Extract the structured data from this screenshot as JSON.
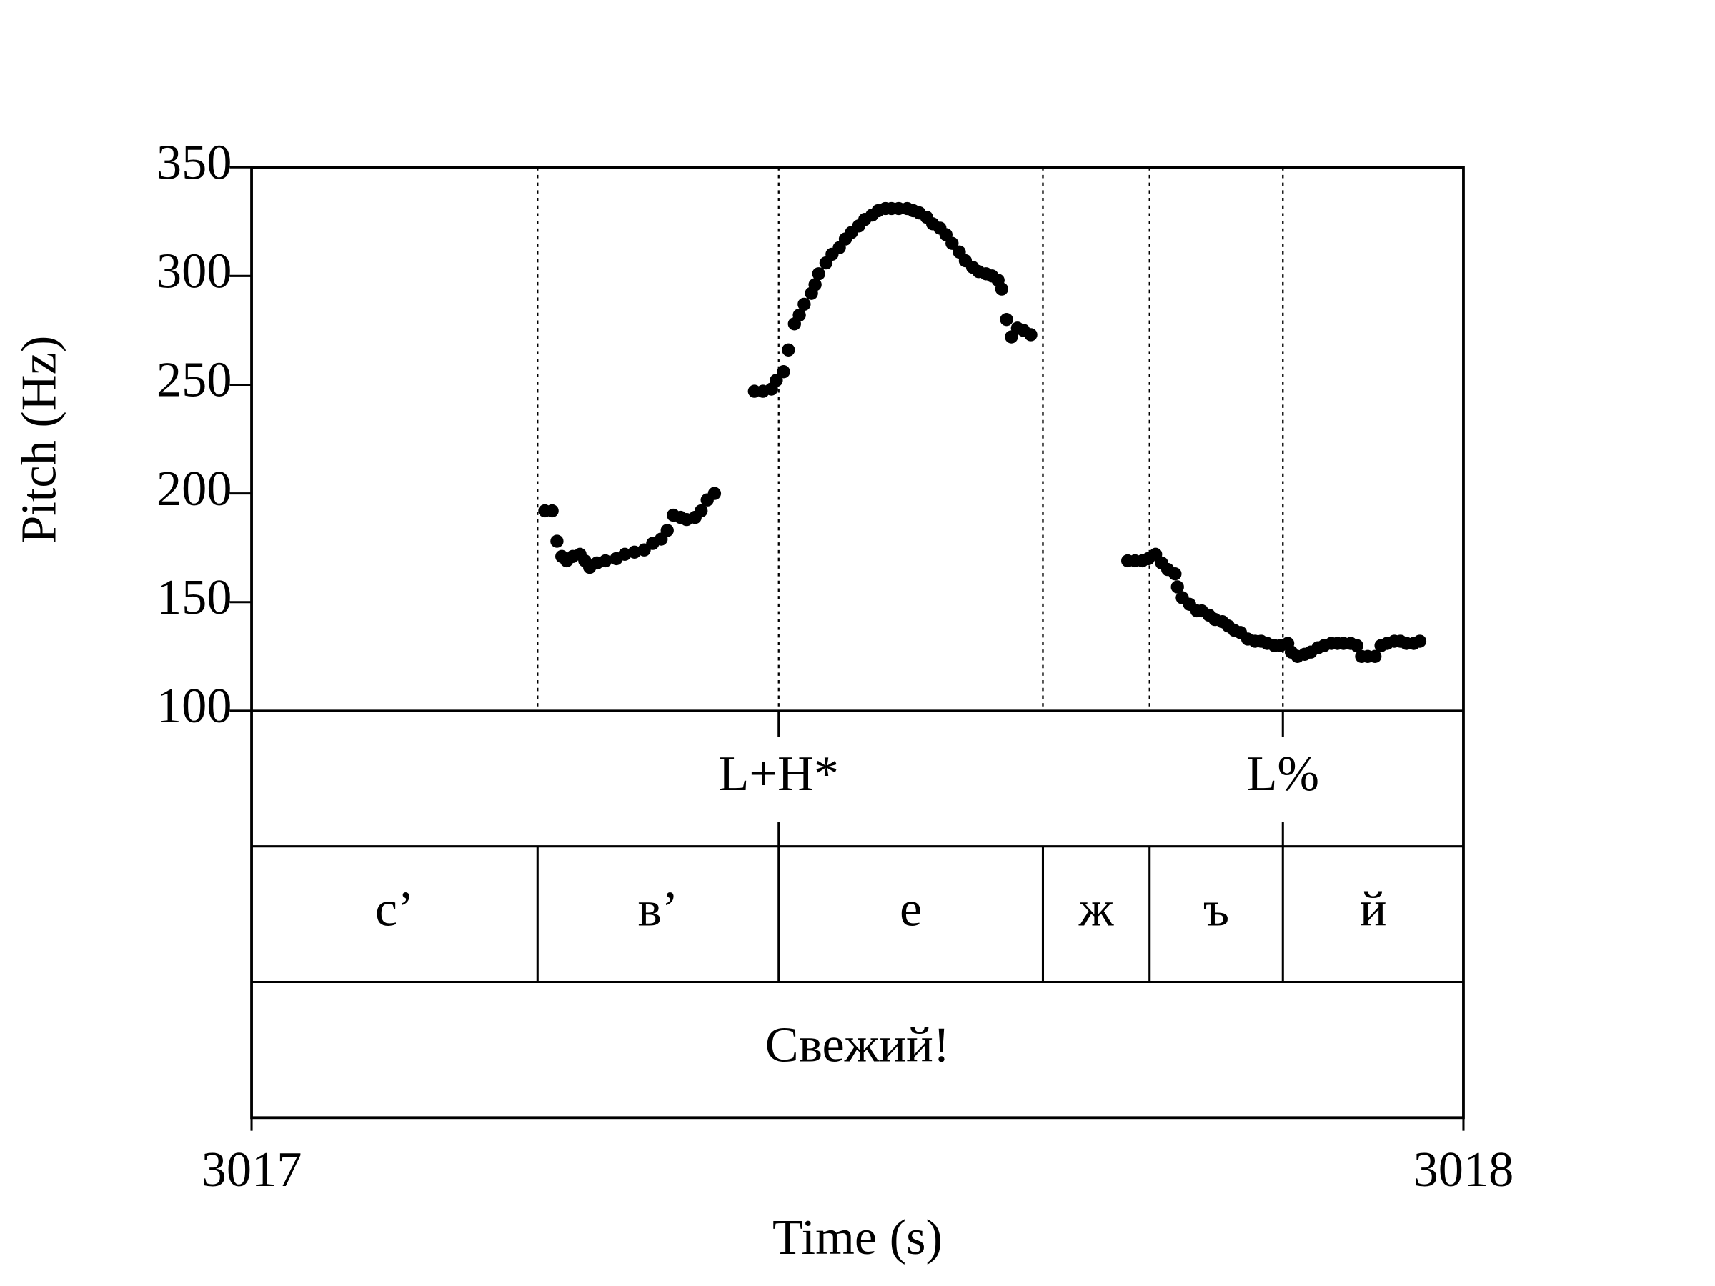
{
  "chart_data": {
    "type": "scatter",
    "xlabel": "Time (s)",
    "ylabel": "Pitch (Hz)",
    "xlim": [
      3017,
      3018
    ],
    "ylim": [
      100,
      350
    ],
    "xticks": [
      3017,
      3018
    ],
    "yticks": [
      100,
      150,
      200,
      250,
      300,
      350
    ],
    "color": "#000000",
    "grid": false,
    "x": [
      3017.242,
      3017.248,
      3017.252,
      3017.256,
      3017.26,
      3017.265,
      3017.271,
      3017.275,
      3017.279,
      3017.285,
      3017.292,
      3017.301,
      3017.308,
      3017.316,
      3017.324,
      3017.331,
      3017.338,
      3017.343,
      3017.348,
      3017.354,
      3017.359,
      3017.366,
      3017.371,
      3017.376,
      3017.382,
      3017.415,
      3017.422,
      3017.429,
      3017.433,
      3017.439,
      3017.443,
      3017.448,
      3017.452,
      3017.456,
      3017.462,
      3017.465,
      3017.468,
      3017.474,
      3017.479,
      3017.485,
      3017.49,
      3017.495,
      3017.501,
      3017.506,
      3017.512,
      3017.517,
      3017.523,
      3017.528,
      3017.534,
      3017.541,
      3017.546,
      3017.551,
      3017.557,
      3017.562,
      3017.568,
      3017.573,
      3017.578,
      3017.584,
      3017.589,
      3017.595,
      3017.6,
      3017.606,
      3017.611,
      3017.616,
      3017.619,
      3017.623,
      3017.627,
      3017.632,
      3017.637,
      3017.643,
      3017.723,
      3017.729,
      3017.735,
      3017.74,
      3017.746,
      3017.751,
      3017.756,
      3017.762,
      3017.764,
      3017.768,
      3017.774,
      3017.78,
      3017.784,
      3017.79,
      3017.795,
      3017.801,
      3017.806,
      3017.811,
      3017.816,
      3017.822,
      3017.828,
      3017.833,
      3017.838,
      3017.844,
      3017.849,
      3017.855,
      3017.858,
      3017.863,
      3017.869,
      3017.874,
      3017.88,
      3017.885,
      3017.891,
      3017.896,
      3017.901,
      3017.907,
      3017.912,
      3017.916,
      3017.921,
      3017.927,
      3017.932,
      3017.937,
      3017.943,
      3017.948,
      3017.953,
      3017.959,
      3017.964
    ],
    "y": [
      192,
      192,
      178,
      171,
      169,
      171,
      172,
      169,
      166,
      168,
      169,
      170,
      172,
      173,
      174,
      177,
      179,
      183,
      190,
      189,
      188,
      189,
      192,
      197,
      200,
      247,
      247,
      248,
      252,
      256,
      266,
      278,
      282,
      287,
      292,
      296,
      301,
      306,
      310,
      313,
      317,
      320,
      323,
      326,
      328,
      330,
      331,
      331,
      331,
      331,
      330,
      329,
      327,
      324,
      322,
      319,
      315,
      311,
      307,
      304,
      302,
      301,
      300,
      298,
      294,
      280,
      272,
      276,
      275,
      273,
      169,
      169,
      169,
      170,
      172,
      168,
      165,
      163,
      157,
      152,
      149,
      146,
      146,
      144,
      142,
      141,
      139,
      137,
      136,
      133,
      132,
      132,
      131,
      130,
      130,
      131,
      127,
      125,
      126,
      127,
      129,
      130,
      131,
      131,
      131,
      131,
      130,
      125,
      125,
      125,
      130,
      131,
      132,
      132,
      131,
      131,
      132
    ],
    "tones": {
      "times": [
        3017.435,
        3017.851
      ],
      "labels": [
        "L+H*",
        "L%"
      ]
    },
    "segments": {
      "boundaries": [
        3017.236,
        3017.435,
        3017.653,
        3017.741,
        3017.851
      ],
      "labels": [
        "с’",
        "в’",
        "е",
        "ж",
        "ъ",
        "й"
      ]
    },
    "words": {
      "labels": [
        "Свежий!"
      ]
    }
  }
}
